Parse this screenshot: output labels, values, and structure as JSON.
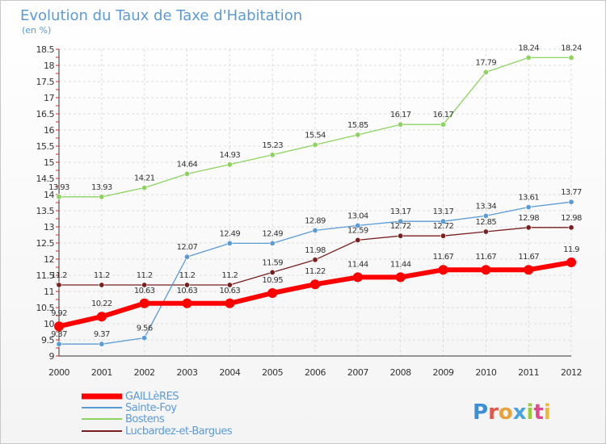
{
  "chart_data": {
    "type": "line",
    "title": "Evolution du Taux de Taxe d'Habitation",
    "subtitle": "(en %)",
    "xlabel": "",
    "ylabel": "",
    "categories": [
      "2000",
      "2001",
      "2002",
      "2003",
      "2004",
      "2005",
      "2006",
      "2007",
      "2008",
      "2009",
      "2010",
      "2011",
      "2012"
    ],
    "ylim": [
      9,
      18.5
    ],
    "yticks": [
      "9",
      "9.5",
      "10",
      "10.5",
      "11",
      "11.5",
      "12",
      "12.5",
      "13",
      "13.5",
      "14",
      "14.5",
      "15",
      "15.5",
      "16",
      "16.5",
      "17",
      "17.5",
      "18",
      "18.5"
    ],
    "grid": true,
    "series": [
      {
        "name": "GAILLèRES",
        "color": "#ff0000",
        "stroke": 6,
        "marker": 6,
        "values": [
          9.92,
          10.22,
          10.63,
          10.63,
          10.63,
          10.95,
          11.22,
          11.44,
          11.44,
          11.67,
          11.67,
          11.67,
          11.9
        ],
        "labels": [
          "9.92",
          "10.22",
          "10.63",
          "10.63",
          "10.63",
          "10.95",
          "11.22",
          "11.44",
          "11.44",
          "11.67",
          "11.67",
          "11.67",
          "11.9"
        ]
      },
      {
        "name": "Sainte-Foy",
        "color": "#5a9bd5",
        "stroke": 1.3,
        "marker": 3.2,
        "values": [
          9.37,
          9.37,
          9.56,
          12.07,
          12.49,
          12.49,
          12.89,
          13.04,
          13.17,
          13.17,
          13.34,
          13.61,
          13.77
        ],
        "labels": [
          "9.37",
          "9.37",
          "9.56",
          "12.07",
          "12.49",
          "12.49",
          "12.89",
          "13.04",
          "13.17",
          "13.17",
          "13.34",
          "13.61",
          "13.77"
        ]
      },
      {
        "name": "Bostens",
        "color": "#8dd35f",
        "stroke": 1.3,
        "marker": 3.2,
        "values": [
          13.93,
          13.93,
          14.21,
          14.64,
          14.93,
          15.23,
          15.54,
          15.85,
          16.17,
          16.17,
          17.79,
          18.24,
          18.24
        ],
        "labels": [
          "13.93",
          "13.93",
          "14.21",
          "14.64",
          "14.93",
          "15.23",
          "15.54",
          "15.85",
          "16.17",
          "16.17",
          "17.79",
          "18.24",
          "18.24"
        ]
      },
      {
        "name": "Lucbardez-et-Bargues",
        "color": "#7b1e1e",
        "stroke": 1.3,
        "marker": 3.2,
        "values": [
          11.2,
          11.2,
          11.2,
          11.2,
          11.2,
          11.59,
          11.98,
          12.59,
          12.72,
          12.72,
          12.85,
          12.98,
          12.98
        ],
        "labels": [
          "11.2",
          "11.2",
          "11.2",
          "11.2",
          "11.2",
          "11.59",
          "11.98",
          "12.59",
          "12.72",
          "12.72",
          "12.85",
          "12.98",
          "12.98"
        ]
      }
    ],
    "legend": {
      "position": "bottom-left"
    }
  },
  "brand": {
    "text": "Proxiti",
    "letters": [
      "P",
      "r",
      "o",
      "x",
      "i",
      "t",
      "i"
    ],
    "colors": [
      "#3b8fd6",
      "#e2574c",
      "#e8a23a",
      "#4aa3df",
      "#9acd32",
      "#e04a8c",
      "#f2b632"
    ]
  }
}
